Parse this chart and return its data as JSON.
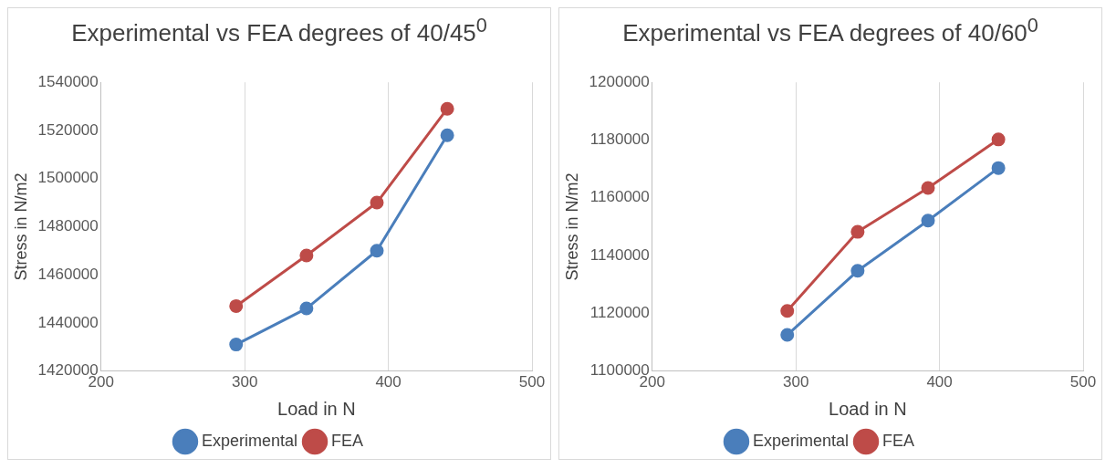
{
  "chart_data": [
    {
      "type": "line",
      "title": "Experimental vs FEA degrees of 40/45$^{0}$",
      "xlabel": "Load in N",
      "ylabel": "Stress in N/m2",
      "x": [
        294,
        343,
        392,
        441
      ],
      "series": [
        {
          "name": "Experimental",
          "color": "#4a7ebb",
          "values": [
            1431000,
            1446000,
            1470000,
            1518000
          ]
        },
        {
          "name": "FEA",
          "color": "#be4b48",
          "values": [
            1447000,
            1468000,
            1490000,
            1529000
          ]
        }
      ],
      "xlim": [
        200,
        500
      ],
      "xticks": [
        200,
        300,
        400,
        500
      ],
      "ylim": [
        1420000,
        1540000
      ],
      "yticks": [
        1420000,
        1440000,
        1460000,
        1480000,
        1500000,
        1520000,
        1540000
      ],
      "grid": "x",
      "legend": "bottom",
      "marker": "circle",
      "line_style": "solid"
    },
    {
      "type": "line",
      "title": "Experimental vs FEA degrees of 40/60$^{0}$",
      "xlabel": "Load in N",
      "ylabel": "Stress in N/m2",
      "x": [
        294,
        343,
        392,
        441
      ],
      "series": [
        {
          "name": "Experimental",
          "color": "#4a7ebb",
          "values": [
            1112500,
            1134700,
            1152100,
            1170300
          ]
        },
        {
          "name": "FEA",
          "color": "#be4b48",
          "values": [
            1120800,
            1148200,
            1163400,
            1180200
          ]
        }
      ],
      "xlim": [
        200,
        500
      ],
      "xticks": [
        200,
        300,
        400,
        500
      ],
      "ylim": [
        1100000,
        1200000
      ],
      "yticks": [
        1100000,
        1120000,
        1140000,
        1160000,
        1180000,
        1200000
      ],
      "grid": "x",
      "legend": "bottom",
      "marker": "circle",
      "line_style": "solid"
    }
  ]
}
